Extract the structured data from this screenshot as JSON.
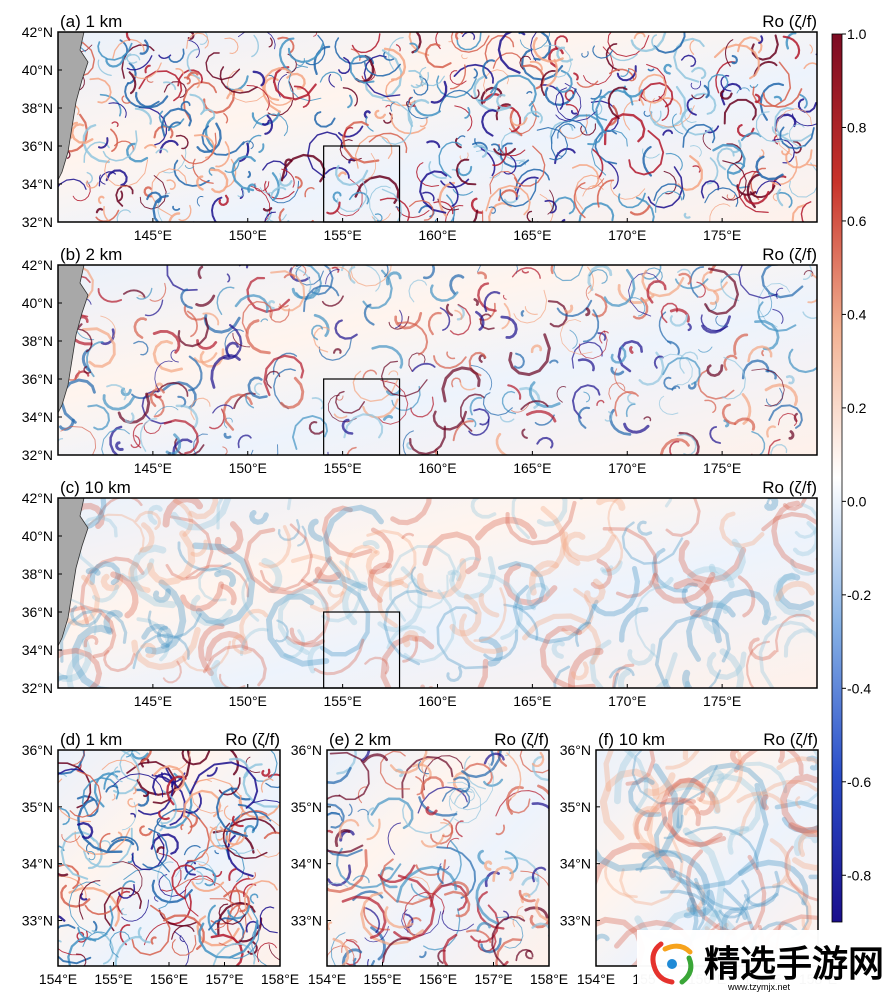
{
  "chart_data": [
    {
      "type": "heatmap",
      "panel_label": "(a) 1 km",
      "variable_label": "Ro (ζ/f)",
      "x_ticks": [
        "145°E",
        "150°E",
        "155°E",
        "160°E",
        "165°E",
        "170°E",
        "175°E"
      ],
      "x_tick_values": [
        145,
        150,
        155,
        160,
        165,
        170,
        175
      ],
      "y_ticks": [
        "32°N",
        "34°N",
        "36°N",
        "38°N",
        "40°N",
        "42°N"
      ],
      "y_tick_values": [
        32,
        34,
        36,
        38,
        40,
        42
      ],
      "xlim": [
        140,
        180
      ],
      "ylim": [
        32,
        42
      ],
      "land_color": "#a8a8a8",
      "inset_box": {
        "lon": [
          154,
          158
        ],
        "lat": [
          32,
          36
        ]
      },
      "intensity": 1.0
    },
    {
      "type": "heatmap",
      "panel_label": "(b) 2 km",
      "variable_label": "Ro (ζ/f)",
      "x_ticks": [
        "145°E",
        "150°E",
        "155°E",
        "160°E",
        "165°E",
        "170°E",
        "175°E"
      ],
      "x_tick_values": [
        145,
        150,
        155,
        160,
        165,
        170,
        175
      ],
      "y_ticks": [
        "32°N",
        "34°N",
        "36°N",
        "38°N",
        "40°N",
        "42°N"
      ],
      "y_tick_values": [
        32,
        34,
        36,
        38,
        40,
        42
      ],
      "xlim": [
        140,
        180
      ],
      "ylim": [
        32,
        42
      ],
      "land_color": "#a8a8a8",
      "inset_box": {
        "lon": [
          154,
          158
        ],
        "lat": [
          32,
          36
        ]
      },
      "intensity": 0.6
    },
    {
      "type": "heatmap",
      "panel_label": "(c) 10 km",
      "variable_label": "Ro (ζ/f)",
      "x_ticks": [
        "145°E",
        "150°E",
        "155°E",
        "160°E",
        "165°E",
        "170°E",
        "175°E"
      ],
      "x_tick_values": [
        145,
        150,
        155,
        160,
        165,
        170,
        175
      ],
      "y_ticks": [
        "32°N",
        "34°N",
        "36°N",
        "38°N",
        "40°N",
        "42°N"
      ],
      "y_tick_values": [
        32,
        34,
        36,
        38,
        40,
        42
      ],
      "xlim": [
        140,
        180
      ],
      "ylim": [
        32,
        42
      ],
      "land_color": "#a8a8a8",
      "inset_box": {
        "lon": [
          154,
          158
        ],
        "lat": [
          32,
          36
        ]
      },
      "intensity": 0.25
    },
    {
      "type": "heatmap",
      "panel_label": "(d) 1 km",
      "variable_label": "Ro (ζ/f)",
      "x_ticks": [
        "154°E",
        "155°E",
        "156°E",
        "157°E",
        "158°E"
      ],
      "x_tick_values": [
        154,
        155,
        156,
        157,
        158
      ],
      "y_ticks": [
        "33°N",
        "34°N",
        "35°N",
        "36°N"
      ],
      "y_tick_values": [
        33,
        34,
        35,
        36
      ],
      "xlim": [
        154,
        158
      ],
      "ylim": [
        32.2,
        36
      ],
      "intensity": 1.0
    },
    {
      "type": "heatmap",
      "panel_label": "(e) 2 km",
      "variable_label": "Ro (ζ/f)",
      "x_ticks": [
        "154°E",
        "155°E",
        "156°E",
        "157°E",
        "158°E"
      ],
      "x_tick_values": [
        154,
        155,
        156,
        157,
        158
      ],
      "y_ticks": [
        "33°N",
        "34°N",
        "35°N",
        "36°N"
      ],
      "y_tick_values": [
        33,
        34,
        35,
        36
      ],
      "xlim": [
        154,
        158
      ],
      "ylim": [
        32.2,
        36
      ],
      "intensity": 0.65
    },
    {
      "type": "heatmap",
      "panel_label": "(f) 10 km",
      "variable_label": "Ro (ζ/f)",
      "x_ticks": [
        "154°E",
        "155°E",
        "156°E",
        "157°E",
        "158°E"
      ],
      "x_tick_values": [
        154,
        155,
        156,
        157,
        158
      ],
      "y_ticks": [
        "33°N",
        "34°N",
        "35°N",
        "36°N"
      ],
      "y_tick_values": [
        33,
        34,
        35,
        36
      ],
      "xlim": [
        154,
        158
      ],
      "ylim": [
        32.2,
        36
      ],
      "intensity": 0.3
    }
  ],
  "colorbar": {
    "ticks": [
      "1.0",
      "0.8",
      "0.6",
      "0.4",
      "0.2",
      "0.0",
      "-0.2",
      "-0.4",
      "-0.6",
      "-0.8"
    ],
    "tick_values": [
      1.0,
      0.8,
      0.6,
      0.4,
      0.2,
      0.0,
      -0.2,
      -0.4,
      -0.6,
      -0.8
    ],
    "vmin": -0.9,
    "vmax": 1.0,
    "colors": [
      "#1a0e8c",
      "#2b4ec9",
      "#86b1e5",
      "#ffffff",
      "#f2b192",
      "#c8332a",
      "#7c0b23"
    ]
  },
  "watermark": {
    "name": "精选手游网",
    "url": "www.tzymjx.net"
  }
}
